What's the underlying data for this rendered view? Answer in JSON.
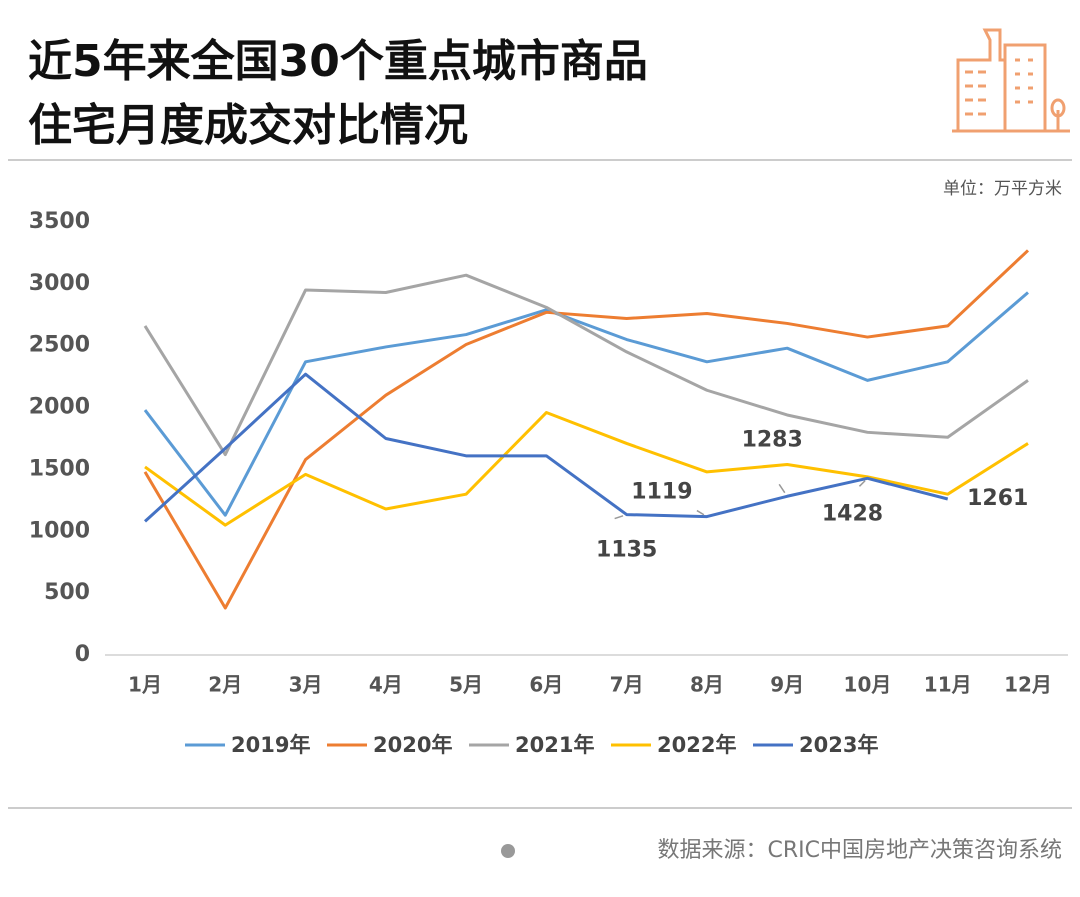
{
  "chart_data": {
    "type": "line",
    "title": [
      "近5年来全国30个重点城市商品",
      "住宅月度成交对比情况"
    ],
    "unit": "单位：万平方米",
    "source": "数据来源：CRIC中国房地产决策咨询系统",
    "categories": [
      "1月",
      "2月",
      "3月",
      "4月",
      "5月",
      "6月",
      "7月",
      "8月",
      "9月",
      "10月",
      "11月",
      "12月"
    ],
    "ylim": [
      0,
      3500
    ],
    "yticks": [
      0,
      500,
      1000,
      1500,
      2000,
      2500,
      3000,
      3500
    ],
    "grid": false,
    "legend": "bottom",
    "series": [
      {
        "name": "2019年",
        "color": "#5b9bd5",
        "values": [
          1980,
          1130,
          2370,
          2490,
          2590,
          2790,
          2550,
          2370,
          2480,
          2220,
          2370,
          2930
        ]
      },
      {
        "name": "2020年",
        "color": "#ed7d31",
        "values": [
          1480,
          380,
          1580,
          2100,
          2510,
          2770,
          2720,
          2760,
          2680,
          2570,
          2660,
          3270
        ]
      },
      {
        "name": "2021年",
        "color": "#a5a5a5",
        "values": [
          2660,
          1620,
          2950,
          2930,
          3070,
          2810,
          2450,
          2140,
          1940,
          1800,
          1760,
          2220
        ]
      },
      {
        "name": "2022年",
        "color": "#ffc000",
        "values": [
          1520,
          1050,
          1460,
          1180,
          1300,
          1960,
          1710,
          1480,
          1540,
          1440,
          1300,
          1710
        ]
      },
      {
        "name": "2023年",
        "color": "#4472c4",
        "values": [
          1080,
          1670,
          2270,
          1750,
          1610,
          1610,
          1135,
          1119,
          1283,
          1428,
          1261,
          null
        ],
        "value_labels": [
          null,
          null,
          null,
          null,
          null,
          null,
          "1135",
          "1119",
          "1283",
          "1428",
          "1261",
          null
        ]
      }
    ]
  }
}
